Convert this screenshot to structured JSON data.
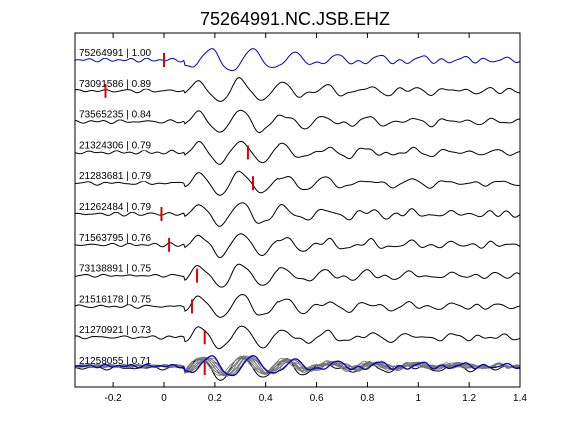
{
  "chart_data": {
    "type": "line",
    "title": "75264991.NC.JSB.EHZ",
    "xlim": [
      -0.35,
      1.4
    ],
    "xticks": [
      -0.2,
      0,
      0.2,
      0.4,
      0.6,
      0.8,
      1,
      1.2,
      1.4
    ],
    "xtick_labels": [
      "-0.2",
      "0",
      "0.2",
      "0.4",
      "0.6",
      "0.8",
      "1",
      "1.2",
      "1.4"
    ],
    "xlabel": "",
    "ylabel": "",
    "grid": false,
    "colors": {
      "reference": "#0000cc",
      "trace": "#000000",
      "pick": "#dd0000",
      "stack": "#777777",
      "frame": "#000000"
    },
    "traces": [
      {
        "label": "75264991 | 1.00",
        "event_id": "75264991",
        "cc": 1.0,
        "pick": 0.0,
        "reference": true
      },
      {
        "label": "73091586 | 0.89",
        "event_id": "73091586",
        "cc": 0.89,
        "pick": -0.23
      },
      {
        "label": "73565235 | 0.84",
        "event_id": "73565235",
        "cc": 0.84,
        "pick": null
      },
      {
        "label": "21324306 | 0.79",
        "event_id": "21324306",
        "cc": 0.79,
        "pick": 0.33
      },
      {
        "label": "21283681 | 0.79",
        "event_id": "21283681",
        "cc": 0.79,
        "pick": 0.35
      },
      {
        "label": "21262484 | 0.79",
        "event_id": "21262484",
        "cc": 0.79,
        "pick": -0.01
      },
      {
        "label": "71563795 | 0.76",
        "event_id": "71563795",
        "cc": 0.76,
        "pick": 0.02
      },
      {
        "label": "73138891 | 0.75",
        "event_id": "73138891",
        "cc": 0.75,
        "pick": 0.13
      },
      {
        "label": "21516178 | 0.75",
        "event_id": "21516178",
        "cc": 0.75,
        "pick": 0.11
      },
      {
        "label": "21270921 | 0.73",
        "event_id": "21270921",
        "cc": 0.73,
        "pick": 0.16
      },
      {
        "label": "21258055 | 0.71",
        "event_id": "21258055",
        "cc": 0.71,
        "pick": 0.16
      }
    ],
    "stack": {
      "overlay_count": 11
    }
  }
}
